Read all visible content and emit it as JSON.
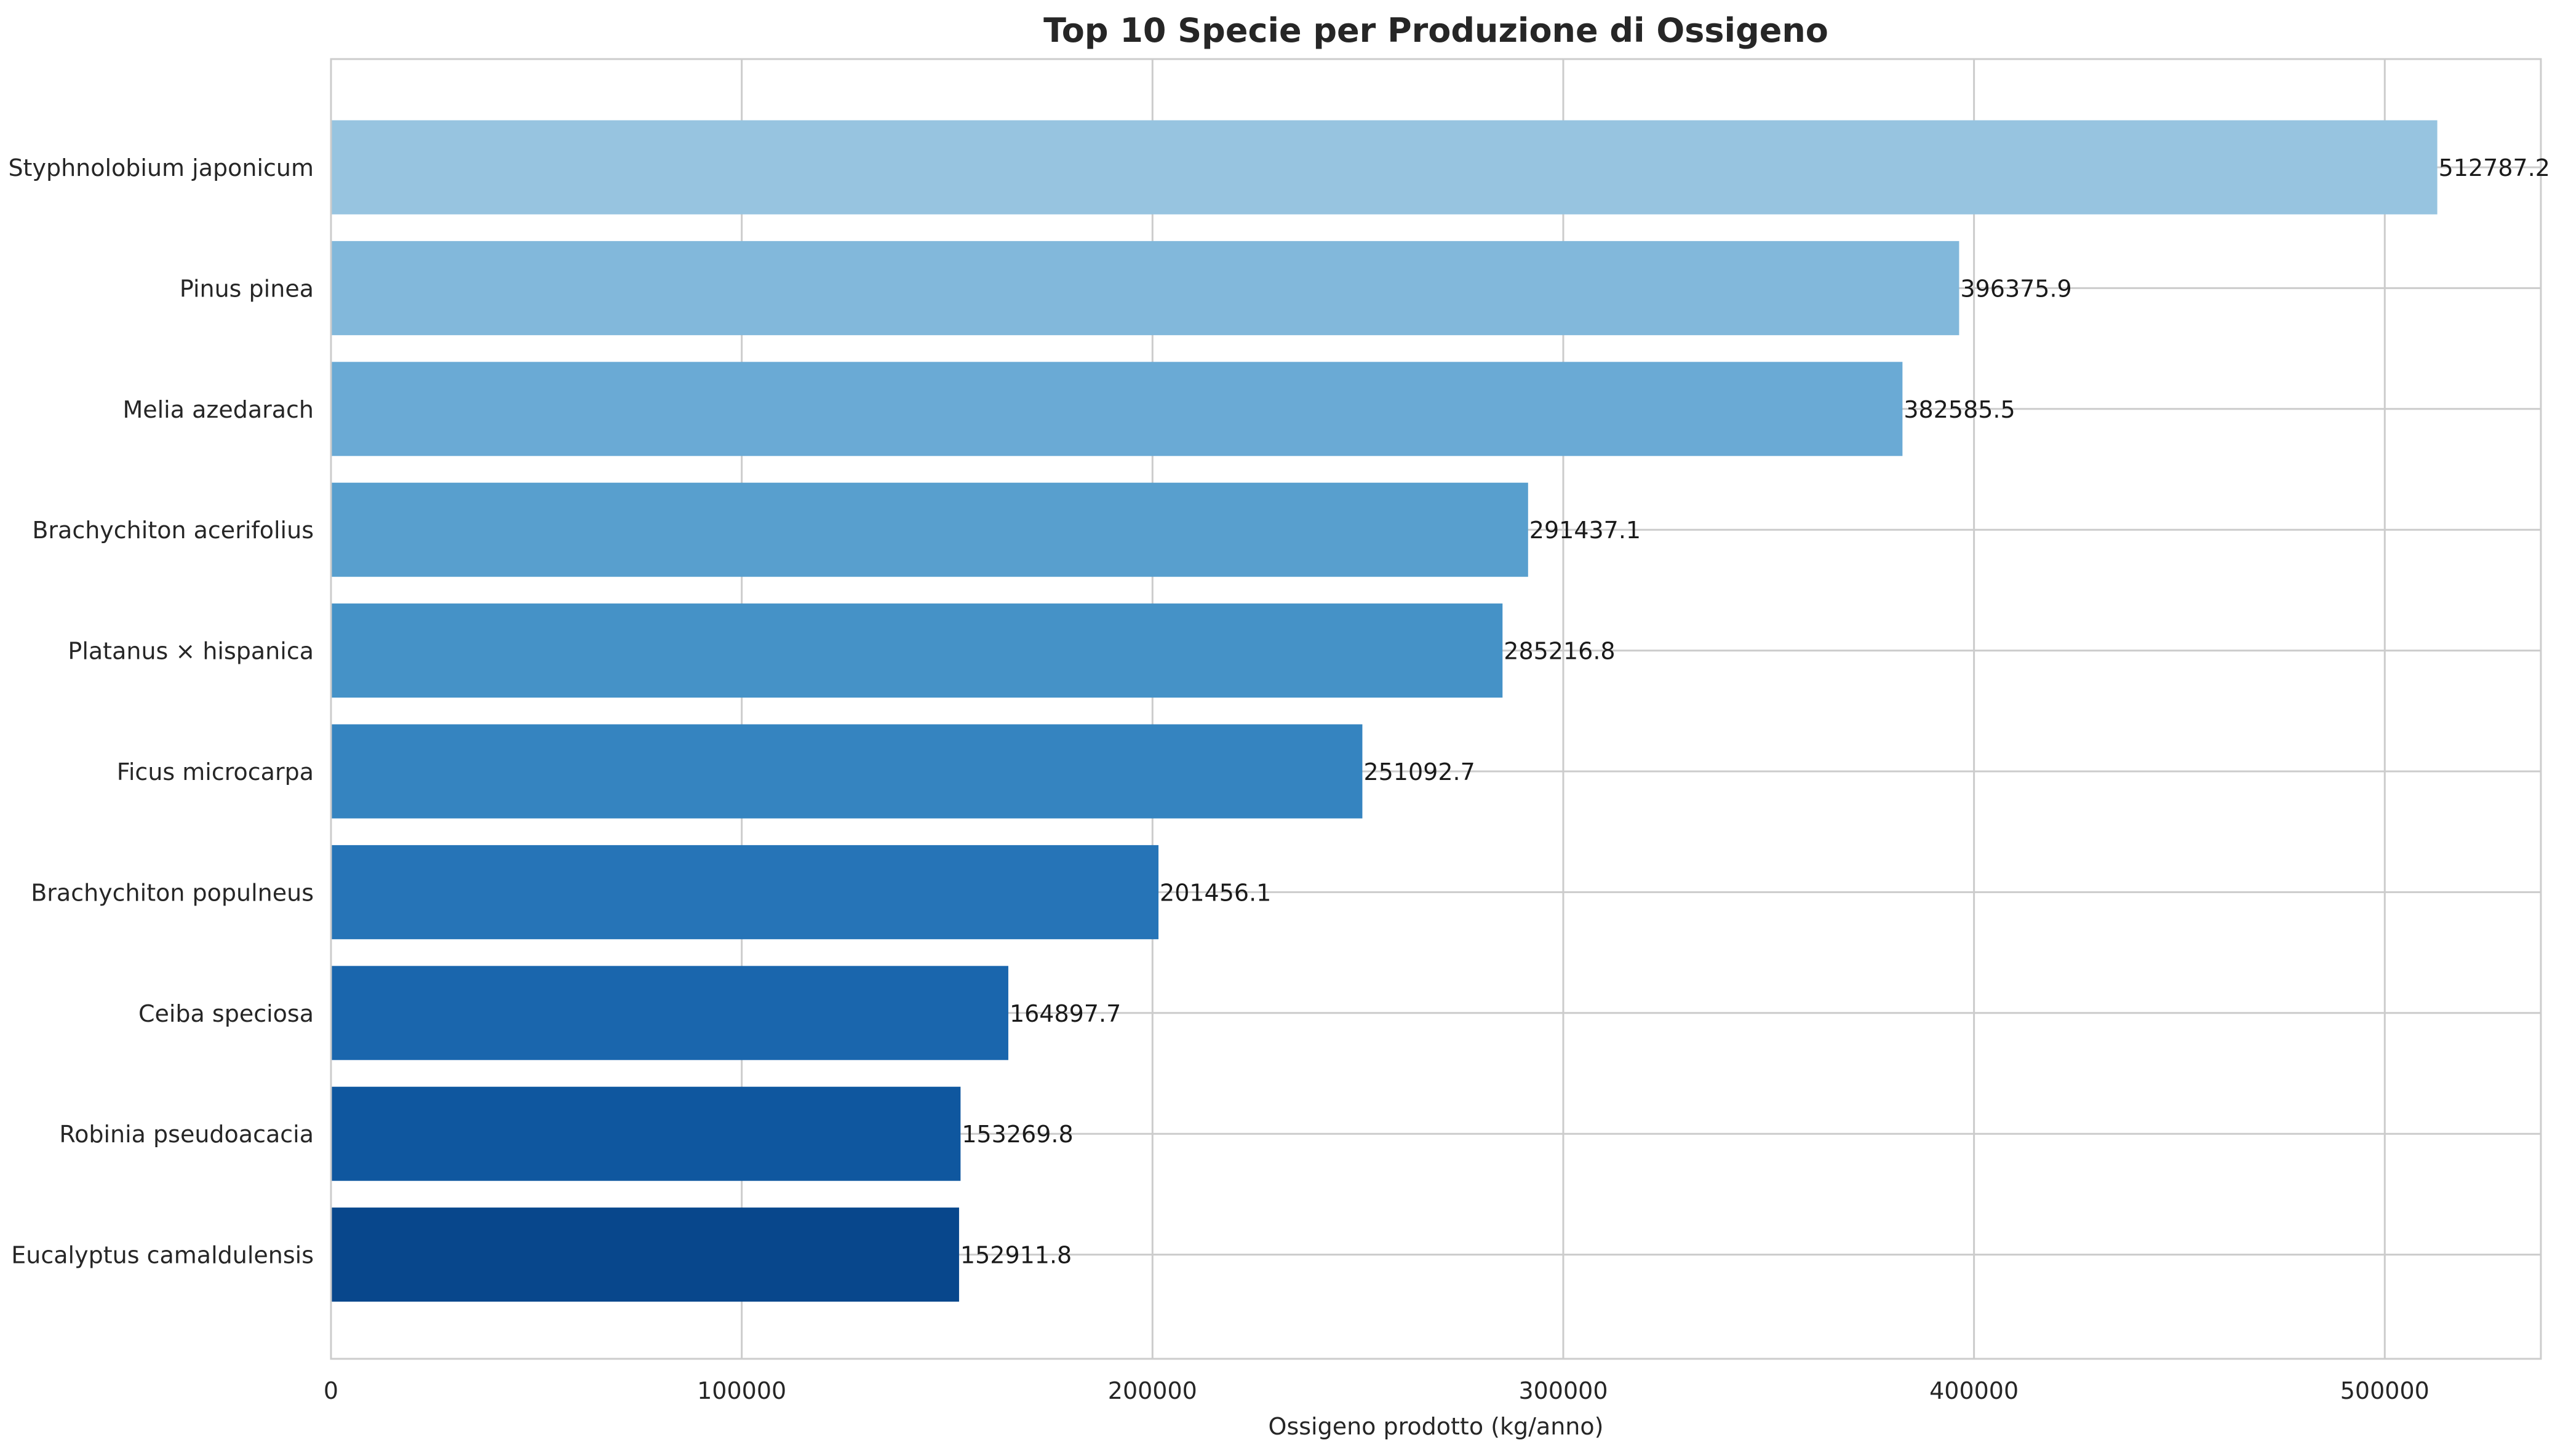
{
  "chart_data": {
    "type": "bar",
    "orientation": "horizontal",
    "title": "Top 10 Specie per Produzione di Ossigeno",
    "xlabel": "Ossigeno prodotto (kg/anno)",
    "ylabel": "",
    "xlim": [
      0,
      538000
    ],
    "xticks": [
      0,
      100000,
      200000,
      300000,
      400000,
      500000
    ],
    "grid": true,
    "legend": "none",
    "categories": [
      "Styphnolobium japonicum",
      "Pinus pinea",
      "Melia azedarach",
      "Brachychiton acerifolius",
      "Platanus × hispanica",
      "Ficus microcarpa",
      "Brachychiton populneus",
      "Ceiba speciosa",
      "Robinia pseudoacacia",
      "Eucalyptus camaldulensis"
    ],
    "values": [
      512787.2,
      396375.9,
      382585.5,
      291437.1,
      285216.8,
      251092.7,
      201456.1,
      164897.7,
      153269.8,
      152911.8
    ],
    "data_labels": [
      "512787.2",
      "396375.9",
      "382585.5",
      "291437.1",
      "285216.8",
      "251092.7",
      "201456.1",
      "164897.7",
      "153269.8",
      "152911.8"
    ],
    "colors": [
      "#97c4e0",
      "#82b8db",
      "#6aaad5",
      "#589fce",
      "#4592c7",
      "#3584c0",
      "#2674b7",
      "#1a66ad",
      "#0f579f",
      "#08478c"
    ]
  }
}
